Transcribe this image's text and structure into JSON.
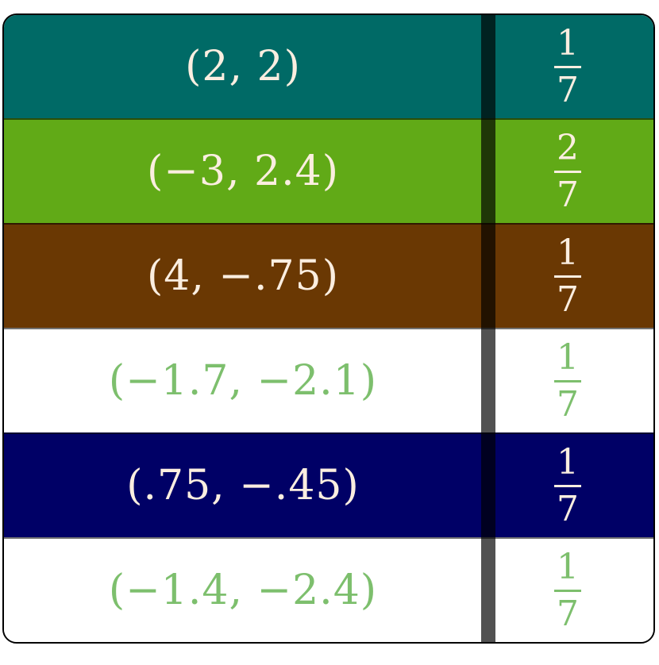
{
  "rows": [
    {
      "point": "(2, 2)",
      "num": "1",
      "den": "7",
      "bg": "#006a66",
      "fg": "#fbeee0"
    },
    {
      "point": "(−3, 2.4)",
      "num": "2",
      "den": "7",
      "bg": "#61aa17",
      "fg": "#fbeee0"
    },
    {
      "point": "(4, −.75)",
      "num": "1",
      "den": "7",
      "bg": "#6a3803",
      "fg": "#fbeee0"
    },
    {
      "point": "(−1.7, −2.1)",
      "num": "1",
      "den": "7",
      "bg": "#ffffff",
      "fg": "#7dbf6d"
    },
    {
      "point": "(.75, −.45)",
      "num": "1",
      "den": "7",
      "bg": "#000066",
      "fg": "#fbeee0"
    },
    {
      "point": "(−1.4, −2.4)",
      "num": "1",
      "den": "7",
      "bg": "#ffffff",
      "fg": "#7dbf6d"
    }
  ]
}
